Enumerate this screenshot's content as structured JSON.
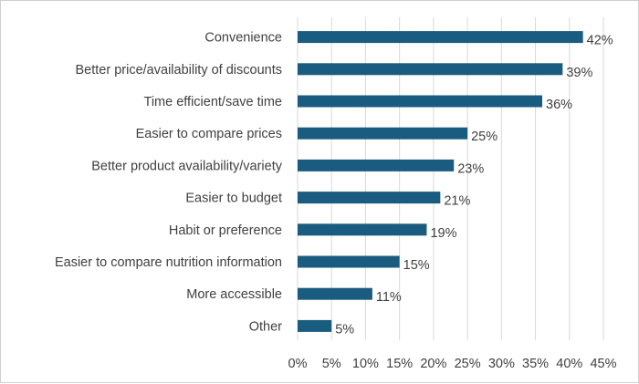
{
  "chart_data": {
    "type": "bar",
    "orientation": "horizontal",
    "categories": [
      "Convenience",
      "Better price/availability of discounts",
      "Time efficient/save time",
      "Easier to compare prices",
      "Better product availability/variety",
      "Easier to budget",
      "Habit or preference",
      "Easier to compare nutrition information",
      "More accessible",
      "Other"
    ],
    "values": [
      42,
      39,
      36,
      25,
      23,
      21,
      19,
      15,
      11,
      5
    ],
    "value_labels": [
      "42%",
      "39%",
      "36%",
      "25%",
      "23%",
      "21%",
      "19%",
      "15%",
      "11%",
      "5%"
    ],
    "x_ticks": [
      "0%",
      "5%",
      "10%",
      "15%",
      "20%",
      "25%",
      "30%",
      "35%",
      "40%",
      "45%"
    ],
    "xlim": [
      0,
      45
    ],
    "grid": "vertical",
    "legend": "none",
    "title": "",
    "xlabel": "",
    "ylabel": "",
    "colors": {
      "bar": "#1a5c80",
      "grid": "#d9d9d9",
      "text": "#404040"
    }
  }
}
